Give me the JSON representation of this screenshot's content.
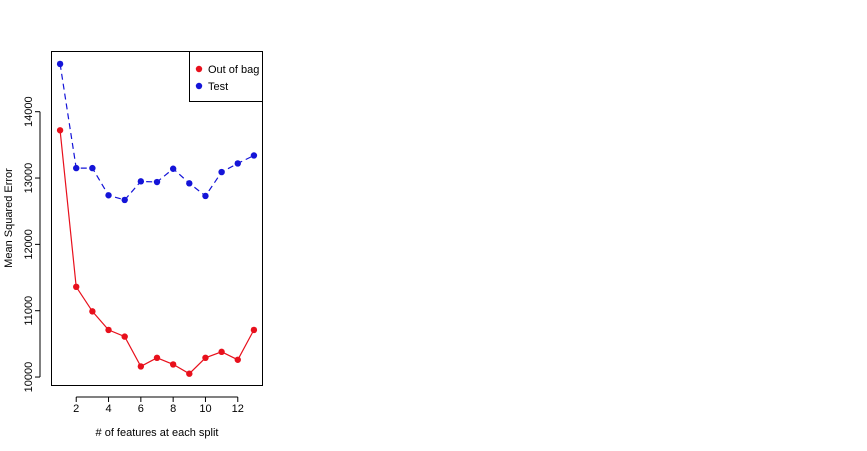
{
  "chart_data": {
    "type": "line",
    "title": "",
    "xlabel": "# of features at each split",
    "ylabel": "Mean Squared Error",
    "xlim": [
      0.5,
      13.5
    ],
    "ylim": [
      9880,
      14900
    ],
    "x_ticks": [
      2,
      4,
      6,
      8,
      10,
      12
    ],
    "y_ticks": [
      10000,
      11000,
      12000,
      13000,
      14000
    ],
    "grid": false,
    "legend_position": "top-right",
    "x": [
      1,
      2,
      3,
      4,
      5,
      6,
      7,
      8,
      9,
      10,
      11,
      12,
      13
    ],
    "series": [
      {
        "name": "Out of bag",
        "color": "#e8101c",
        "line_style": "solid",
        "values": [
          13720,
          11360,
          10990,
          10710,
          10610,
          10160,
          10290,
          10190,
          10050,
          10290,
          10380,
          10260,
          10710
        ]
      },
      {
        "name": "Test",
        "color": "#1414d8",
        "line_style": "dashed",
        "values": [
          14720,
          13150,
          13150,
          12740,
          12670,
          12950,
          12940,
          13140,
          12920,
          12730,
          13090,
          13220,
          13340
        ]
      }
    ]
  }
}
